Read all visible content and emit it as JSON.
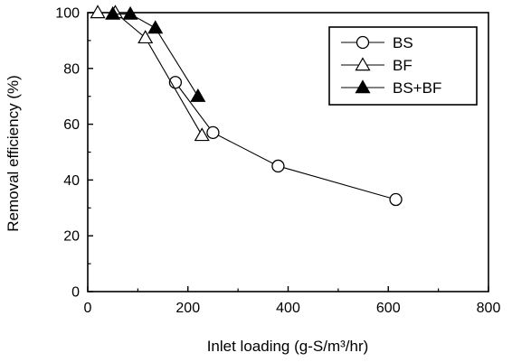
{
  "chart_data": {
    "type": "line",
    "title": "",
    "xlabel": "Inlet loading (g-S/m³/hr)",
    "ylabel": "Removal efficiency (%)",
    "xlim": [
      0,
      800
    ],
    "ylim": [
      0,
      100
    ],
    "x_ticks": [
      0,
      200,
      400,
      600,
      800
    ],
    "y_ticks": [
      0,
      20,
      40,
      60,
      80,
      100
    ],
    "grid": false,
    "legend_position": "top-right",
    "series": [
      {
        "name": "BS",
        "marker": "open-circle",
        "x": [
          175,
          250,
          380,
          615
        ],
        "y": [
          75,
          57,
          45,
          33
        ]
      },
      {
        "name": "BF",
        "marker": "open-triangle",
        "x": [
          20,
          55,
          115,
          228
        ],
        "y": [
          100,
          100,
          91,
          56
        ]
      },
      {
        "name": "BS+BF",
        "marker": "filled-triangle",
        "x": [
          50,
          85,
          135,
          220
        ],
        "y": [
          99.5,
          99.5,
          94.5,
          70
        ]
      }
    ]
  }
}
